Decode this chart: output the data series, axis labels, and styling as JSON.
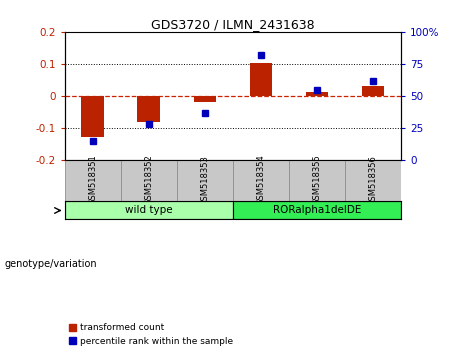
{
  "title": "GDS3720 / ILMN_2431638",
  "samples": [
    "GSM518351",
    "GSM518352",
    "GSM518353",
    "GSM518354",
    "GSM518355",
    "GSM518356"
  ],
  "red_values": [
    -0.128,
    -0.082,
    -0.018,
    0.104,
    0.012,
    0.03
  ],
  "blue_values_pct": [
    15,
    28,
    37,
    82,
    55,
    62
  ],
  "ylim_left": [
    -0.2,
    0.2
  ],
  "ylim_right": [
    0,
    100
  ],
  "yticks_left": [
    -0.2,
    -0.1,
    0.0,
    0.1,
    0.2
  ],
  "yticks_right": [
    0,
    25,
    50,
    75,
    100
  ],
  "bar_color_red": "#BB2200",
  "bar_color_blue": "#0000BB",
  "zero_line_color": "#CC2200",
  "background_plot": "#FFFFFF",
  "legend_red_label": "transformed count",
  "legend_blue_label": "percentile rank within the sample",
  "genotype_label": "genotype/variation",
  "bar_width": 0.4,
  "groups": [
    {
      "label": "wild type",
      "indices": [
        0,
        1,
        2
      ],
      "color": "#AAFFAA"
    },
    {
      "label": "RORalpha1delDE",
      "indices": [
        3,
        4,
        5
      ],
      "color": "#33EE55"
    }
  ]
}
